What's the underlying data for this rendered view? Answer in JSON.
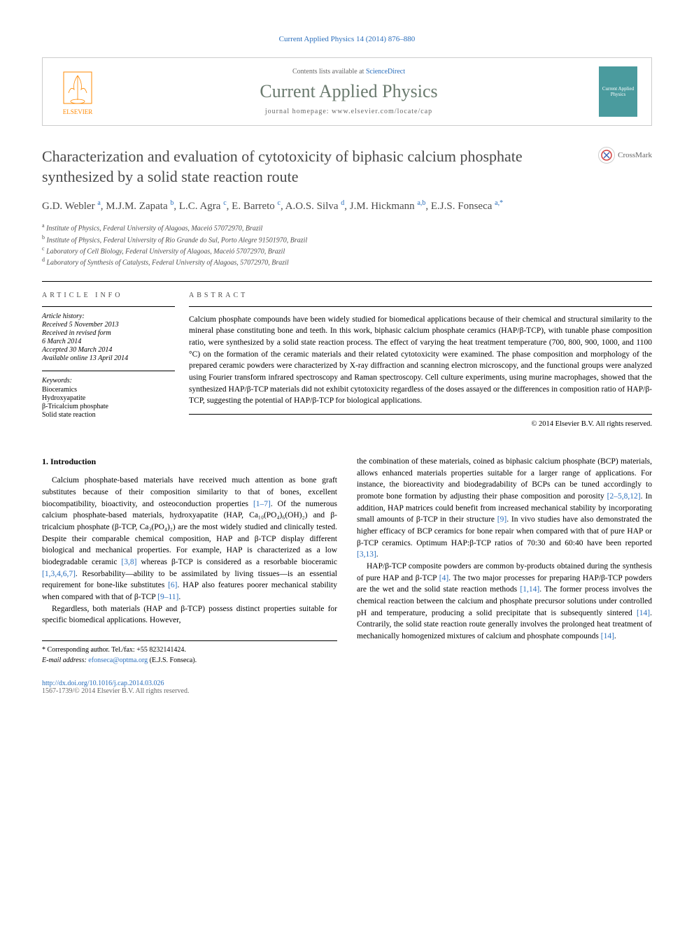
{
  "citation": "Current Applied Physics 14 (2014) 876–880",
  "header": {
    "publisher": "ELSEVIER",
    "contents_prefix": "Contents lists available at ",
    "contents_link": "ScienceDirect",
    "journal_name": "Current Applied Physics",
    "homepage_prefix": "journal homepage: ",
    "homepage_url": "www.elsevier.com/locate/cap",
    "cover_text": "Current Applied Physics"
  },
  "crossmark_label": "CrossMark",
  "title": "Characterization and evaluation of cytotoxicity of biphasic calcium phosphate synthesized by a solid state reaction route",
  "authors_html": "G.D. Webler <sup>a</sup>, M.J.M. Zapata <sup>b</sup>, L.C. Agra <sup>c</sup>, E. Barreto <sup>c</sup>, A.O.S. Silva <sup>d</sup>, J.M. Hickmann <sup>a,b</sup>, E.J.S. Fonseca <sup>a,*</sup>",
  "affiliations": [
    {
      "sup": "a",
      "text": "Institute of Physics, Federal University of Alagoas, Maceió 57072970, Brazil"
    },
    {
      "sup": "b",
      "text": "Institute of Physics, Federal University of Rio Grande do Sul, Porto Alegre 91501970, Brazil"
    },
    {
      "sup": "c",
      "text": "Laboratory of Cell Biology, Federal University of Alagoas, Maceió 57072970, Brazil"
    },
    {
      "sup": "d",
      "text": "Laboratory of Synthesis of Catalysts, Federal University of Alagoas, 57072970, Brazil"
    }
  ],
  "info_header": "ARTICLE INFO",
  "abstract_header": "ABSTRACT",
  "history": {
    "label": "Article history:",
    "items": [
      "Received 5 November 2013",
      "Received in revised form",
      "6 March 2014",
      "Accepted 30 March 2014",
      "Available online 13 April 2014"
    ]
  },
  "keywords": {
    "label": "Keywords:",
    "items": [
      "Bioceramics",
      "Hydroxyapatite",
      "β-Tricalcium phosphate",
      "Solid state reaction"
    ]
  },
  "abstract_text": "Calcium phosphate compounds have been widely studied for biomedical applications because of their chemical and structural similarity to the mineral phase constituting bone and teeth. In this work, biphasic calcium phosphate ceramics (HAP/β-TCP), with tunable phase composition ratio, were synthesized by a solid state reaction process. The effect of varying the heat treatment temperature (700, 800, 900, 1000, and 1100 °C) on the formation of the ceramic materials and their related cytotoxicity were examined. The phase composition and morphology of the prepared ceramic powders were characterized by X-ray diffraction and scanning electron microscopy, and the functional groups were analyzed using Fourier transform infrared spectroscopy and Raman spectroscopy. Cell culture experiments, using murine macrophages, showed that the synthesized HAP/β-TCP materials did not exhibit cytotoxicity regardless of the doses assayed or the differences in composition ratio of HAP/β-TCP, suggesting the potential of HAP/β-TCP for biological applications.",
  "copyright": "© 2014 Elsevier B.V. All rights reserved.",
  "section1_heading": "1. Introduction",
  "col1_p1_a": "Calcium phosphate-based materials have received much attention as bone graft substitutes because of their composition similarity to that of bones, excellent biocompatibility, bioactivity, and osteoconduction properties ",
  "col1_p1_ref1": "[1–7]",
  "col1_p1_b": ". Of the numerous calcium phosphate-based materials, hydroxyapatite (HAP, Ca₁₀(PO₄)₆(OH)₂) and β-tricalcium phosphate (β-TCP, Ca₃(PO₄)₂) are the most widely studied and clinically tested. Despite their comparable chemical composition, HAP and β-TCP display different biological and mechanical properties. For example, HAP is characterized as a low biodegradable ceramic ",
  "col1_p1_ref2": "[3,8]",
  "col1_p1_c": " whereas β-TCP is considered as a resorbable bioceramic ",
  "col1_p1_ref3": "[1,3,4,6,7]",
  "col1_p1_d": ". Resorbability—ability to be assimilated by living tissues—is an essential requirement for bone-like substitutes ",
  "col1_p1_ref4": "[6]",
  "col1_p1_e": ". HAP also features poorer mechanical stability when compared with that of β-TCP ",
  "col1_p1_ref5": "[9–11]",
  "col1_p1_f": ".",
  "col1_p2": "Regardless, both materials (HAP and β-TCP) possess distinct properties suitable for specific biomedical applications. However,",
  "col2_p1_a": "the combination of these materials, coined as biphasic calcium phosphate (BCP) materials, allows enhanced materials properties suitable for a larger range of applications. For instance, the bioreactivity and biodegradability of BCPs can be tuned accordingly to promote bone formation by adjusting their phase composition and porosity ",
  "col2_p1_ref1": "[2–5,8,12]",
  "col2_p1_b": ". In addition, HAP matrices could benefit from increased mechanical stability by incorporating small amounts of β-TCP in their structure ",
  "col2_p1_ref2": "[9]",
  "col2_p1_c": ". In vivo studies have also demonstrated the higher efficacy of BCP ceramics for bone repair when compared with that of pure HAP or β-TCP ceramics. Optimum HAP:β-TCP ratios of 70:30 and 60:40 have been reported ",
  "col2_p1_ref3": "[3,13]",
  "col2_p1_d": ".",
  "col2_p2_a": "HAP/β-TCP composite powders are common by-products obtained during the synthesis of pure HAP and β-TCP ",
  "col2_p2_ref1": "[4]",
  "col2_p2_b": ". The two major processes for preparing HAP/β-TCP powders are the wet and the solid state reaction methods ",
  "col2_p2_ref2": "[1,14]",
  "col2_p2_c": ". The former process involves the chemical reaction between the calcium and phosphate precursor solutions under controlled pH and temperature, producing a solid precipitate that is subsequently sintered ",
  "col2_p2_ref3": "[14]",
  "col2_p2_d": ". Contrarily, the solid state reaction route generally involves the prolonged heat treatment of mechanically homogenized mixtures of calcium and phosphate compounds ",
  "col2_p2_ref4": "[14]",
  "col2_p2_e": ".",
  "corresponding": {
    "label": "* Corresponding author. Tel./fax: +55 8232141424.",
    "email_label": "E-mail address: ",
    "email": "efonseca@optma.org",
    "email_suffix": " (E.J.S. Fonseca)."
  },
  "footer": {
    "doi": "http://dx.doi.org/10.1016/j.cap.2014.03.026",
    "issn": "1567-1739/© 2014 Elsevier B.V. All rights reserved."
  },
  "colors": {
    "link": "#2a6ebb",
    "publisher": "#ff8800",
    "journal_title": "#6a7a6e",
    "cover_bg": "#4a9b9e",
    "body_text": "#000000",
    "muted": "#666666",
    "title_text": "#4a4a4a"
  }
}
